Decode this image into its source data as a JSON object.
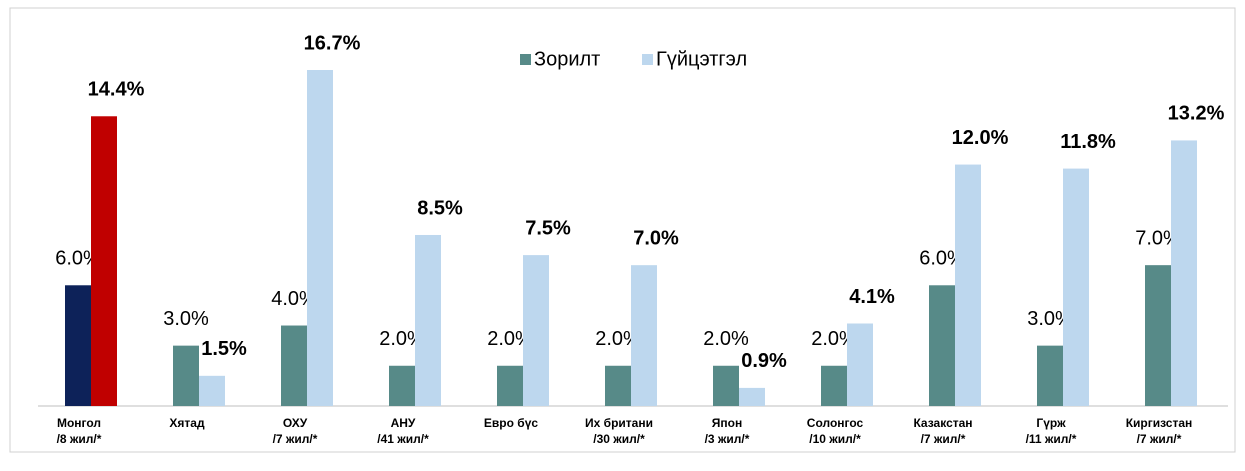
{
  "chart_data": {
    "type": "bar",
    "categories": [
      "Монгол\n/8 жил/*",
      "Хятад",
      "ОХУ\n/7 жил/*",
      "АНУ\n/41 жил/*",
      "Евро бүс",
      "Их британи\n/30 жил/*",
      "Япон\n/3 жил/*",
      "Солонгос\n/10 жил/*",
      "Казакстан\n/7 жил/*",
      "Гүрж\n/11 жил/*",
      "Киргизстан\n/7 жил/*"
    ],
    "series": [
      {
        "name": "Зорилт",
        "color": "#578a88",
        "colors": [
          "#0d2259",
          "#578a88",
          "#578a88",
          "#578a88",
          "#578a88",
          "#578a88",
          "#578a88",
          "#578a88",
          "#578a88",
          "#578a88",
          "#578a88"
        ],
        "values": [
          6.0,
          3.0,
          4.0,
          2.0,
          2.0,
          2.0,
          2.0,
          2.0,
          6.0,
          3.0,
          7.0
        ],
        "value_labels": [
          "6.0%",
          "3.0%",
          "4.0%",
          "2.0%",
          "2.0%",
          "2.0%",
          "2.0%",
          "2.0%",
          "6.0%",
          "3.0%",
          "7.0%"
        ]
      },
      {
        "name": "Гүйцэтгэл",
        "color": "#bdd7ee",
        "colors": [
          "#c00000",
          "#bdd7ee",
          "#bdd7ee",
          "#bdd7ee",
          "#bdd7ee",
          "#bdd7ee",
          "#bdd7ee",
          "#bdd7ee",
          "#bdd7ee",
          "#bdd7ee",
          "#bdd7ee"
        ],
        "values": [
          14.4,
          1.5,
          16.7,
          8.5,
          7.5,
          7.0,
          0.9,
          4.1,
          12.0,
          11.8,
          13.2
        ],
        "value_labels": [
          "14.4%",
          "1.5%",
          "16.7%",
          "8.5%",
          "7.5%",
          "7.0%",
          "0.9%",
          "4.1%",
          "12.0%",
          "11.8%",
          "13.2%"
        ]
      }
    ],
    "legend": "top"
  }
}
